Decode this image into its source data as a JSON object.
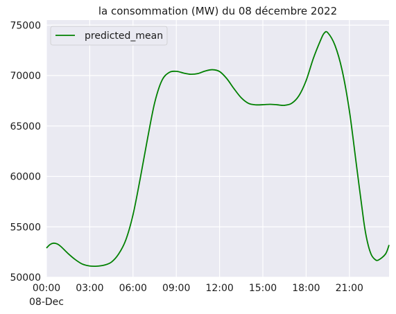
{
  "chart_data": {
    "type": "line",
    "title": "la consommation (MW) du 08 décembre 2022",
    "xlabel": "",
    "ylabel": "",
    "xlim": [
      "00:00",
      "23:45"
    ],
    "ylim": [
      50000,
      75500
    ],
    "grid": true,
    "legend_position": "top-left",
    "x_ticks": [
      {
        "value": 0,
        "label": "00:00",
        "sublabel": "08-Dec"
      },
      {
        "value": 3,
        "label": "03:00"
      },
      {
        "value": 6,
        "label": "06:00"
      },
      {
        "value": 9,
        "label": "09:00"
      },
      {
        "value": 12,
        "label": "12:00"
      },
      {
        "value": 15,
        "label": "15:00"
      },
      {
        "value": 18,
        "label": "18:00"
      },
      {
        "value": 21,
        "label": "21:00"
      }
    ],
    "y_ticks": [
      50000,
      55000,
      60000,
      65000,
      70000,
      75000
    ],
    "series": [
      {
        "name": "predicted_mean",
        "color": "#008000",
        "x_hours": [
          0,
          0.25,
          0.5,
          0.75,
          1,
          1.5,
          2,
          2.5,
          3,
          3.5,
          4,
          4.5,
          5,
          5.5,
          6,
          6.5,
          7,
          7.5,
          8,
          8.5,
          9,
          9.5,
          10,
          10.5,
          11,
          11.5,
          12,
          12.5,
          13,
          13.5,
          14,
          14.5,
          15,
          15.5,
          16,
          16.5,
          17,
          17.5,
          18,
          18.5,
          19,
          19.25,
          19.5,
          20,
          20.5,
          21,
          21.5,
          22,
          22.25,
          22.5,
          22.75,
          23,
          23.5,
          23.75
        ],
        "values": [
          52900,
          53250,
          53380,
          53300,
          53050,
          52350,
          51750,
          51300,
          51120,
          51100,
          51200,
          51500,
          52300,
          53700,
          56200,
          59800,
          63700,
          67300,
          69500,
          70300,
          70420,
          70250,
          70130,
          70200,
          70450,
          70580,
          70400,
          69700,
          68700,
          67800,
          67250,
          67100,
          67110,
          67150,
          67100,
          67050,
          67250,
          68000,
          69500,
          71700,
          73500,
          74200,
          74250,
          73000,
          70500,
          66500,
          61000,
          55500,
          53500,
          52300,
          51800,
          51700,
          52300,
          53200
        ]
      }
    ]
  }
}
